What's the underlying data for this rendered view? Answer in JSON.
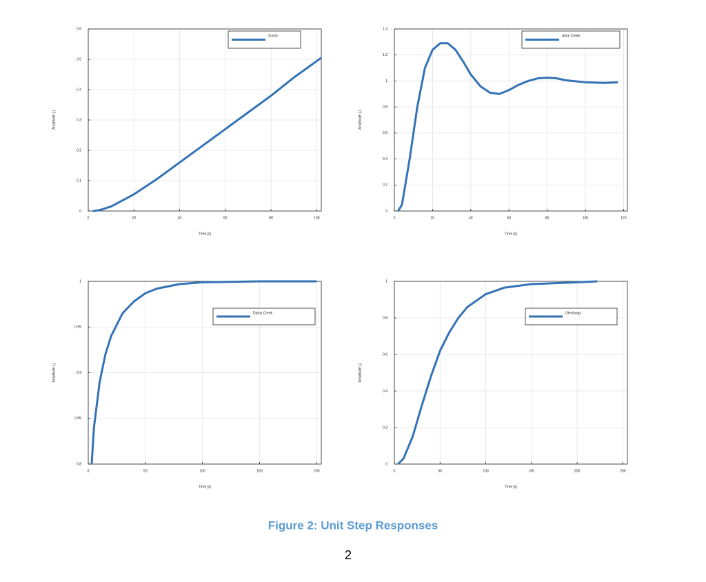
{
  "chart_data": [
    {
      "type": "line",
      "xlabel": "Time [s]",
      "ylabel": "Amplitude [-]",
      "x": [
        2,
        5,
        10,
        20,
        30,
        40,
        50,
        60,
        70,
        80,
        90,
        102
      ],
      "series": [
        {
          "name": "Scicto",
          "color": "#3372b5",
          "values": [
            0,
            0.003,
            0.015,
            0.055,
            0.105,
            0.16,
            0.215,
            0.27,
            0.325,
            0.38,
            0.44,
            0.505
          ]
        }
      ],
      "xlim": [
        0,
        102
      ],
      "xticks": [
        0,
        20,
        40,
        60,
        80,
        100
      ],
      "ylim": [
        0,
        0.6
      ],
      "yticks": [
        0,
        0.1,
        0.2,
        0.3,
        0.4,
        0.5,
        0.6
      ],
      "grid": true,
      "legend": "upper right"
    },
    {
      "type": "line",
      "xlabel": "Time [s]",
      "ylabel": "Amplitude [-]",
      "x": [
        2,
        4,
        8,
        12,
        16,
        20,
        24,
        28,
        32,
        36,
        40,
        45,
        50,
        55,
        60,
        65,
        70,
        75,
        80,
        85,
        90,
        100,
        110,
        117
      ],
      "series": [
        {
          "name": "Alum Creek",
          "color": "#3372b5",
          "values": [
            0,
            0.05,
            0.4,
            0.8,
            1.1,
            1.24,
            1.29,
            1.29,
            1.24,
            1.15,
            1.05,
            0.96,
            0.91,
            0.9,
            0.93,
            0.97,
            1.0,
            1.02,
            1.025,
            1.02,
            1.005,
            0.99,
            0.985,
            0.99
          ]
        }
      ],
      "xlim": [
        0,
        122
      ],
      "xticks": [
        0,
        20,
        40,
        60,
        80,
        100,
        120
      ],
      "ylim": [
        0,
        1.4
      ],
      "yticks": [
        0,
        0.2,
        0.4,
        0.6,
        0.8,
        1,
        1.2,
        1.4
      ],
      "grid": true,
      "legend": "upper right"
    },
    {
      "type": "line",
      "xlabel": "Time [s]",
      "ylabel": "Amplitude [-]",
      "x": [
        3,
        5,
        10,
        15,
        20,
        30,
        40,
        50,
        60,
        80,
        100,
        150,
        200
      ],
      "series": [
        {
          "name": "Darby Creek",
          "color": "#3372b5",
          "values": [
            0.8,
            0.84,
            0.89,
            0.92,
            0.94,
            0.965,
            0.978,
            0.987,
            0.992,
            0.997,
            0.999,
            1.0,
            1.0
          ]
        }
      ],
      "xlim": [
        0,
        204
      ],
      "xticks": [
        0,
        50,
        100,
        150,
        200
      ],
      "ylim": [
        0.8,
        1
      ],
      "yticks": [
        0.8,
        0.85,
        0.9,
        0.95,
        1
      ],
      "grid": true,
      "legend": "upper right"
    },
    {
      "type": "line",
      "xlabel": "Time [s]",
      "ylabel": "Amplitude [-]",
      "x": [
        4,
        10,
        20,
        30,
        40,
        50,
        60,
        70,
        80,
        100,
        120,
        150,
        200,
        222
      ],
      "series": [
        {
          "name": "Olentangy",
          "color": "#3372b5",
          "values": [
            0,
            0.03,
            0.15,
            0.32,
            0.48,
            0.62,
            0.72,
            0.8,
            0.86,
            0.93,
            0.965,
            0.985,
            0.995,
            1.0
          ]
        }
      ],
      "xlim": [
        0,
        255
      ],
      "xticks": [
        0,
        50,
        100,
        150,
        200,
        250
      ],
      "ylim": [
        0,
        1
      ],
      "yticks": [
        0,
        0.2,
        0.4,
        0.6,
        0.8,
        1
      ],
      "grid": true,
      "legend": "upper right"
    }
  ],
  "caption": "Figure 2: Unit Step Responses",
  "page_number": "2"
}
